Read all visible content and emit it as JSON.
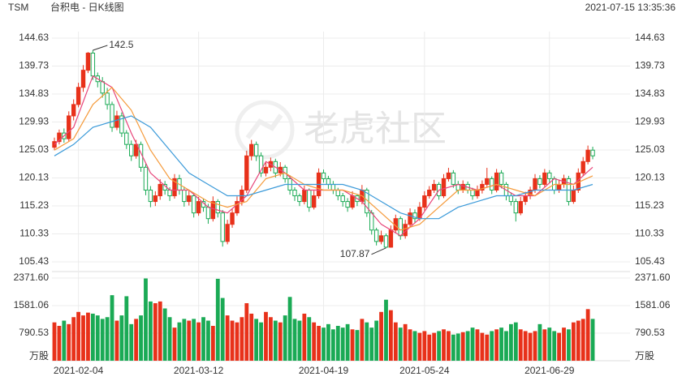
{
  "chart_data": {
    "type": "candlestick",
    "symbol": "TSM",
    "title": "台积电 - 日K线图",
    "timestamp": "2021-07-15 13:35:36",
    "watermark": "老虎社区",
    "volume_unit": "万股",
    "up_color": "#e8311a",
    "down_color": "#1aaa55",
    "grid": true,
    "categories": [
      null,
      null,
      null,
      null,
      null,
      "2021-02-04",
      null,
      null,
      null,
      null,
      null,
      null,
      null,
      null,
      null,
      null,
      null,
      null,
      null,
      null,
      null,
      null,
      null,
      null,
      null,
      null,
      null,
      null,
      null,
      null,
      "2021-03-12",
      null,
      null,
      null,
      null,
      null,
      null,
      null,
      null,
      null,
      null,
      null,
      null,
      null,
      null,
      null,
      null,
      null,
      null,
      null,
      null,
      null,
      null,
      null,
      null,
      null,
      "2021-04-19",
      null,
      null,
      null,
      null,
      null,
      null,
      null,
      null,
      null,
      null,
      null,
      null,
      null,
      null,
      null,
      null,
      null,
      null,
      null,
      null,
      "2021-05-24",
      null,
      null,
      null,
      null,
      null,
      null,
      null,
      null,
      null,
      null,
      null,
      null,
      null,
      null,
      null,
      null,
      null,
      null,
      null,
      null,
      null,
      null,
      null,
      null,
      null,
      "2021-06-29",
      null,
      null,
      null,
      null,
      null,
      null,
      null,
      null,
      null
    ],
    "ohlc": [
      [
        125.5,
        127.2,
        125,
        126.5
      ],
      [
        126.5,
        128.6,
        126,
        128
      ],
      [
        128,
        128.8,
        126.3,
        127
      ],
      [
        127,
        131.8,
        126.5,
        131
      ],
      [
        131,
        133.9,
        130.2,
        133
      ],
      [
        133,
        136.8,
        132.5,
        136
      ],
      [
        136,
        139.9,
        135.2,
        139
      ],
      [
        139,
        142.19,
        138.5,
        142
      ],
      [
        142,
        142.5,
        137.3,
        138
      ],
      [
        138,
        138.6,
        136,
        137
      ],
      [
        137,
        137.8,
        134.2,
        135
      ],
      [
        135,
        135.9,
        132.1,
        133
      ],
      [
        133,
        133.5,
        128.2,
        129
      ],
      [
        129,
        131.9,
        128.5,
        131
      ],
      [
        131,
        131.6,
        127.3,
        128
      ],
      [
        128,
        128.5,
        125.2,
        126
      ],
      [
        126,
        126.7,
        123.1,
        124
      ],
      [
        124,
        126.8,
        123.5,
        126
      ],
      [
        126,
        126.5,
        121.2,
        122
      ],
      [
        122,
        122.6,
        117.1,
        118
      ],
      [
        118,
        118.7,
        115,
        116
      ],
      [
        116,
        117.8,
        115.2,
        117
      ],
      [
        117,
        119.9,
        116.3,
        119
      ],
      [
        119,
        119.6,
        117.2,
        118
      ],
      [
        118,
        118.5,
        116.1,
        117
      ],
      [
        117,
        120.8,
        116.5,
        120
      ],
      [
        120,
        120.7,
        117.2,
        118
      ],
      [
        118,
        118.6,
        115.1,
        116
      ],
      [
        116,
        117.9,
        115.3,
        117
      ],
      [
        117,
        117.4,
        113.2,
        114
      ],
      [
        114,
        116.8,
        113.5,
        116
      ],
      [
        116,
        116.5,
        114.2,
        115
      ],
      [
        115,
        115.6,
        112.1,
        113
      ],
      [
        113,
        116.9,
        112.5,
        116
      ],
      [
        116,
        116.4,
        113.2,
        114
      ],
      [
        114,
        114.5,
        108.1,
        109
      ],
      [
        109,
        112.8,
        108.5,
        112
      ],
      [
        112,
        114.7,
        111.4,
        114
      ],
      [
        114,
        116.9,
        113.5,
        116
      ],
      [
        116,
        118.8,
        115.3,
        118
      ],
      [
        118,
        124.9,
        117.5,
        124
      ],
      [
        124,
        126.8,
        123.2,
        126
      ],
      [
        126,
        126.5,
        123.1,
        124
      ],
      [
        124,
        124.6,
        120.3,
        121
      ],
      [
        121,
        122.8,
        120.4,
        122
      ],
      [
        122,
        123.7,
        121.3,
        123
      ],
      [
        123,
        123.5,
        120.2,
        121
      ],
      [
        121,
        122.9,
        120.4,
        122
      ],
      [
        122,
        122.4,
        119.3,
        120
      ],
      [
        120,
        120.6,
        117.2,
        118
      ],
      [
        118,
        118.5,
        116.1,
        117
      ],
      [
        117,
        117.4,
        115.2,
        116
      ],
      [
        116,
        118.8,
        115.5,
        118
      ],
      [
        118,
        118.3,
        114.2,
        115
      ],
      [
        115,
        117.9,
        114.6,
        117
      ],
      [
        117,
        121.8,
        116.5,
        121
      ],
      [
        121,
        121.6,
        119.3,
        120
      ],
      [
        120,
        120.5,
        118.2,
        119
      ],
      [
        119,
        119.6,
        117.3,
        118
      ],
      [
        118,
        118.4,
        116.2,
        117
      ],
      [
        117,
        117.5,
        115.1,
        116
      ],
      [
        116,
        116.6,
        114.2,
        115
      ],
      [
        115,
        117.8,
        114.6,
        117
      ],
      [
        117,
        117.3,
        115.2,
        116
      ],
      [
        116,
        118.9,
        115.5,
        118
      ],
      [
        118,
        118.4,
        113.3,
        114
      ],
      [
        114,
        114.5,
        110.2,
        111
      ],
      [
        111,
        111.4,
        108.3,
        109
      ],
      [
        109,
        110.9,
        108.5,
        110
      ],
      [
        110,
        110.4,
        107.87,
        108
      ],
      [
        108,
        111.8,
        107.9,
        111
      ],
      [
        111,
        113.7,
        110.5,
        113
      ],
      [
        113,
        113.4,
        109.3,
        110
      ],
      [
        110,
        112.8,
        109.5,
        112
      ],
      [
        112,
        114.8,
        111.4,
        114
      ],
      [
        114,
        114.6,
        112.2,
        113
      ],
      [
        113,
        115.9,
        112.6,
        115
      ],
      [
        115,
        117.8,
        114.4,
        117
      ],
      [
        117,
        118.7,
        116.5,
        118
      ],
      [
        118,
        119.8,
        117.5,
        119
      ],
      [
        119,
        119.4,
        116.3,
        117
      ],
      [
        117,
        120.8,
        116.6,
        120
      ],
      [
        120,
        121.9,
        119.5,
        121
      ],
      [
        121,
        121.5,
        118.4,
        119
      ],
      [
        119,
        119.6,
        117.3,
        118
      ],
      [
        118,
        119.7,
        117.5,
        119
      ],
      [
        119,
        119.5,
        117.4,
        118
      ],
      [
        118,
        118.4,
        116.3,
        117
      ],
      [
        117,
        118.8,
        116.5,
        118
      ],
      [
        118,
        119.7,
        117.4,
        119
      ],
      [
        119,
        121.9,
        118.5,
        120
      ],
      [
        120,
        120.4,
        117.3,
        118
      ],
      [
        118,
        121.7,
        117.6,
        121
      ],
      [
        121,
        121.5,
        118.3,
        119
      ],
      [
        119,
        119.4,
        116.2,
        117
      ],
      [
        117,
        117.6,
        115.3,
        116
      ],
      [
        116,
        116.5,
        112.5,
        114
      ],
      [
        114,
        116.8,
        113.6,
        116
      ],
      [
        116,
        117.7,
        115.4,
        117
      ],
      [
        117,
        118.6,
        116.4,
        118
      ],
      [
        118,
        120.8,
        117.5,
        120
      ],
      [
        120,
        120.6,
        118.3,
        119
      ],
      [
        119,
        121.7,
        118.6,
        121
      ],
      [
        121,
        121.5,
        119.2,
        120
      ],
      [
        120,
        120.4,
        117.3,
        118
      ],
      [
        118,
        119.8,
        117.5,
        119
      ],
      [
        119,
        120.7,
        118.4,
        120
      ],
      [
        120,
        120.5,
        115.3,
        116
      ],
      [
        116,
        118.8,
        115.6,
        118
      ],
      [
        118,
        121.8,
        117.5,
        121
      ],
      [
        121,
        123.8,
        120.4,
        123
      ],
      [
        123,
        125.8,
        122.5,
        125
      ],
      [
        125,
        125.6,
        123.4,
        124
      ]
    ],
    "volume": [
      1100,
      1000,
      1150,
      1050,
      1250,
      1400,
      1300,
      1380,
      1350,
      1300,
      1200,
      1250,
      1880,
      1150,
      1300,
      1850,
      1050,
      1200,
      1300,
      2360,
      1700,
      1650,
      1700,
      1500,
      1250,
      950,
      1100,
      1200,
      1150,
      1200,
      1100,
      1250,
      1150,
      1000,
      2350,
      1800,
      1300,
      1150,
      1100,
      1250,
      1650,
      1350,
      1200,
      1100,
      1400,
      1250,
      1150,
      1100,
      1300,
      1830,
      1200,
      1150,
      1350,
      1250,
      1100,
      1000,
      950,
      1050,
      900,
      1000,
      950,
      1050,
      900,
      880,
      1200,
      1100,
      950,
      1150,
      1400,
      1750,
      1450,
      1100,
      950,
      1050,
      900,
      850,
      800,
      850,
      750,
      800,
      850,
      900,
      850,
      750,
      780,
      820,
      850,
      950,
      900,
      800,
      750,
      850,
      900,
      950,
      850,
      1050,
      1100,
      900,
      850,
      800,
      850,
      1050,
      900,
      950,
      850,
      800,
      950,
      900,
      1100,
      1150,
      1200,
      1480,
      1200
    ],
    "ylim": [
      105.43,
      144.63
    ],
    "yticks": [
      105.43,
      110.33,
      115.23,
      120.13,
      125.03,
      129.93,
      134.83,
      139.73,
      144.63
    ],
    "vylim": [
      0,
      2371.6
    ],
    "vyticks": [
      790.53,
      1581.06,
      {
        "value": 2371.6,
        "label": "2371.60"
      }
    ],
    "ma": [
      {
        "color": "#e8457a",
        "x": [
          0,
          4,
          8,
          12,
          16,
          20,
          24,
          28,
          32,
          36,
          40,
          44,
          48,
          52,
          56,
          60,
          64,
          68,
          72,
          76,
          80,
          84,
          88,
          92,
          96,
          100,
          104,
          108,
          112
        ],
        "values": [
          126,
          129,
          138,
          136,
          128,
          121,
          118,
          118,
          115,
          114,
          117,
          123,
          121,
          118,
          118,
          118,
          116,
          112,
          110,
          113,
          118,
          119,
          118,
          119,
          117,
          117,
          120,
          119,
          122
        ]
      },
      {
        "color": "#f59a3a",
        "x": [
          0,
          4,
          8,
          12,
          16,
          20,
          24,
          28,
          32,
          36,
          40,
          44,
          48,
          52,
          56,
          60,
          64,
          68,
          72,
          76,
          80,
          84,
          88,
          92,
          96,
          100,
          104,
          108,
          112
        ],
        "values": [
          125,
          127,
          133,
          136,
          132,
          125,
          120,
          118,
          116,
          115,
          116,
          120,
          121,
          119,
          118,
          118,
          117,
          114,
          111,
          112,
          115,
          118,
          118,
          119,
          118,
          117,
          119,
          119,
          120.5
        ]
      },
      {
        "color": "#3b9ad9",
        "x": [
          0,
          4,
          8,
          12,
          16,
          20,
          24,
          28,
          32,
          36,
          40,
          44,
          48,
          52,
          56,
          60,
          64,
          68,
          72,
          76,
          80,
          84,
          88,
          92,
          96,
          100,
          104,
          108,
          112
        ],
        "values": [
          124,
          126,
          129,
          130,
          131,
          129,
          125,
          121,
          119,
          117,
          117,
          118,
          119,
          119,
          119,
          119,
          118,
          116,
          114,
          113,
          113,
          115,
          116,
          117,
          117,
          118,
          118,
          118,
          119
        ]
      }
    ]
  }
}
